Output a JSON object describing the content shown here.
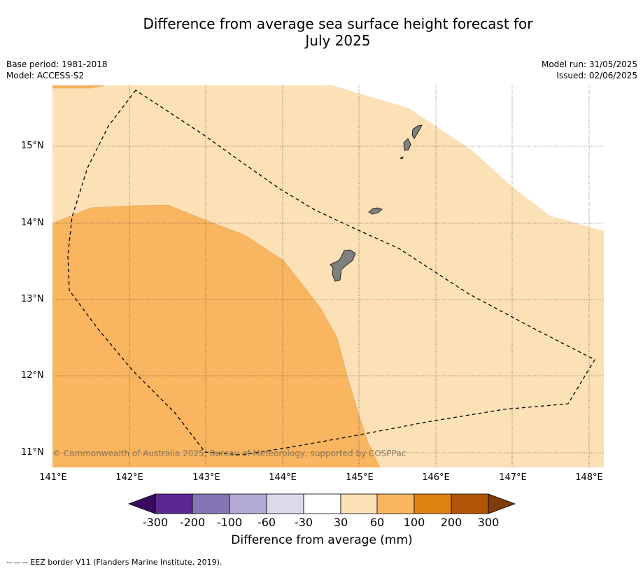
{
  "header": {
    "title_line1": "Difference from average sea surface height forecast for",
    "title_line2": "July 2025",
    "base_period": "Base period: 1981-2018",
    "model": "Model: ACCESS-S2",
    "model_run": "Model run: 31/05/2025",
    "issued": "Issued: 02/06/2025"
  },
  "map": {
    "latitude_labels": [
      "15°N",
      "14°N",
      "13°N",
      "12°N",
      "11°N"
    ],
    "longitude_labels": [
      "141°E",
      "142°E",
      "143°E",
      "144°E",
      "145°E",
      "146°E",
      "147°E",
      "148°E"
    ],
    "copyright": "© Commonwealth of Australia 2025, Bureau of Meteorology, supported by COSPPac",
    "colors": {
      "band_30_60": "#fce0b6",
      "band_60_100": "#f9b560",
      "land": "#808080",
      "eez_line": "#000000"
    }
  },
  "colorbar": {
    "ticks": [
      "-300",
      "-200",
      "-100",
      "-60",
      "-30",
      "30",
      "60",
      "100",
      "200",
      "300"
    ],
    "colors": [
      "#3a0a5e",
      "#5a2890",
      "#8475b4",
      "#b2a9d4",
      "#dadaeb",
      "#ffffff",
      "#fce0b6",
      "#f9b560",
      "#e08212",
      "#b05606",
      "#7f3b08"
    ],
    "label": "Difference from average (mm)"
  },
  "footer": {
    "eez_note": "--  --  -- EEZ border V11 (Flanders Marine Institute, 2019)."
  }
}
